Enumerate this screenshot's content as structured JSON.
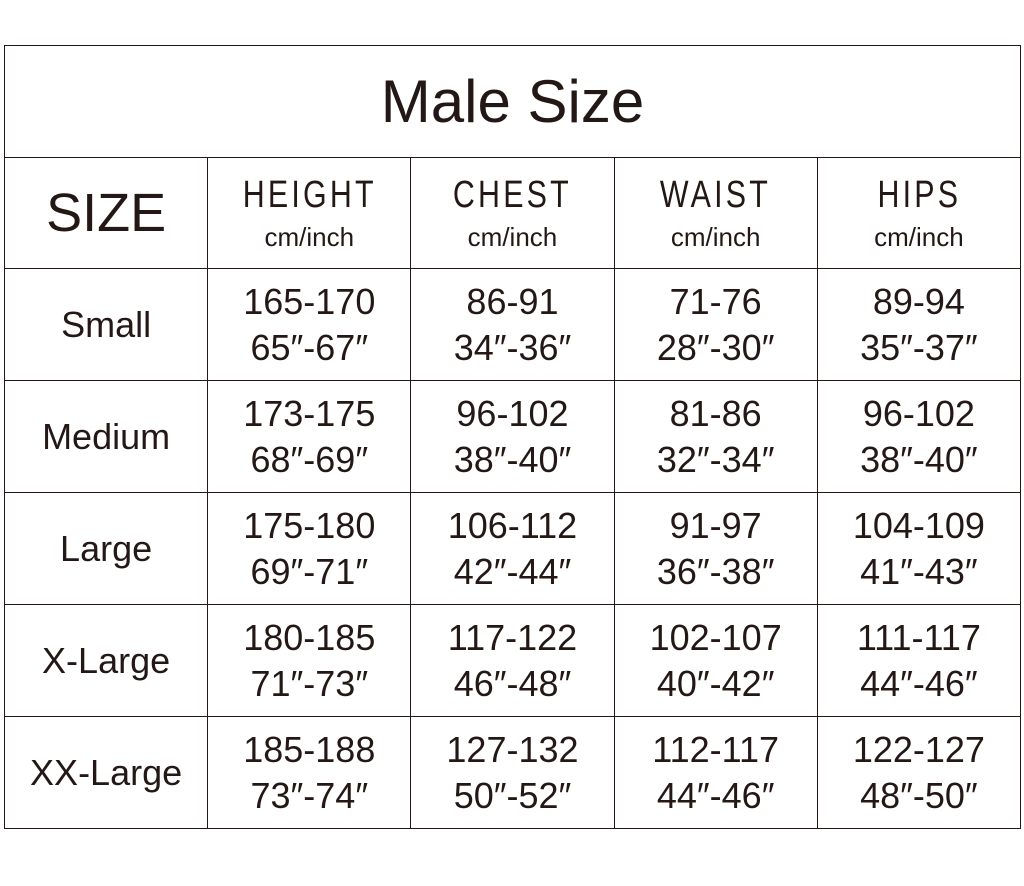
{
  "title": "Male Size",
  "headers": {
    "size": "SIZE",
    "columns": [
      {
        "label": "HEIGHT",
        "unit": "cm/inch"
      },
      {
        "label": "CHEST",
        "unit": "cm/inch"
      },
      {
        "label": "WAIST",
        "unit": "cm/inch"
      },
      {
        "label": "HIPS",
        "unit": "cm/inch"
      }
    ]
  },
  "rows": [
    {
      "size": "Small",
      "cells": [
        [
          "165-170",
          "65″-67″"
        ],
        [
          "86-91",
          "34″-36″"
        ],
        [
          "71-76",
          "28″-30″"
        ],
        [
          "89-94",
          "35″-37″"
        ]
      ]
    },
    {
      "size": "Medium",
      "cells": [
        [
          "173-175",
          "68″-69″"
        ],
        [
          "96-102",
          "38″-40″"
        ],
        [
          "81-86",
          "32″-34″"
        ],
        [
          "96-102",
          "38″-40″"
        ]
      ]
    },
    {
      "size": "Large",
      "cells": [
        [
          "175-180",
          "69″-71″"
        ],
        [
          "106-112",
          "42″-44″"
        ],
        [
          "91-97",
          "36″-38″"
        ],
        [
          "104-109",
          "41″-43″"
        ]
      ]
    },
    {
      "size": "X-Large",
      "cells": [
        [
          "180-185",
          "71″-73″"
        ],
        [
          "117-122",
          "46″-48″"
        ],
        [
          "102-107",
          "40″-42″"
        ],
        [
          "111-117",
          "44″-46″"
        ]
      ]
    },
    {
      "size": "XX-Large",
      "cells": [
        [
          "185-188",
          "73″-74″"
        ],
        [
          "127-132",
          "50″-52″"
        ],
        [
          "112-117",
          "44″-46″"
        ],
        [
          "122-127",
          "48″-50″"
        ]
      ]
    }
  ]
}
